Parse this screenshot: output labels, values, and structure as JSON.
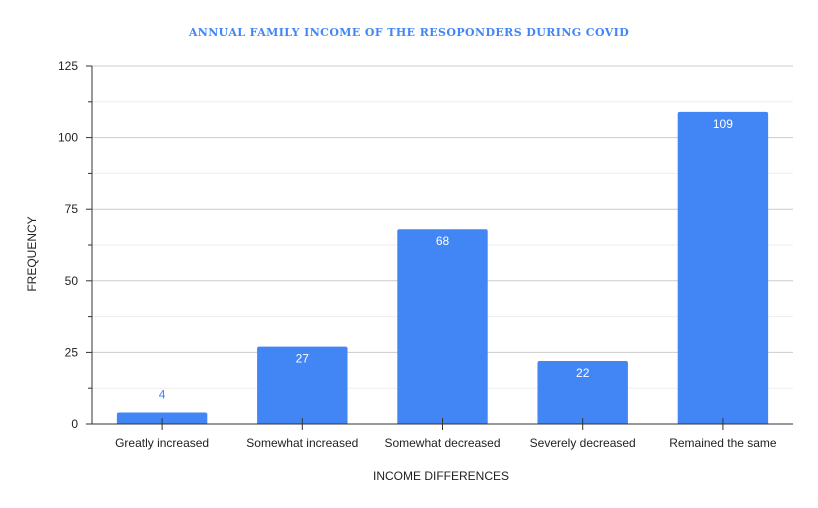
{
  "chart_data": {
    "type": "bar",
    "title": "ANNUAL FAMILY INCOME OF THE RESOPONDERS DURING COVID",
    "xlabel": "INCOME DIFFERENCES",
    "ylabel": "FREQUENCY",
    "categories": [
      "Greatly increased",
      "Somewhat increased",
      "Somewhat decreased",
      "Severely decreased",
      "Remained the same"
    ],
    "values": [
      4,
      27,
      68,
      22,
      109
    ],
    "data_labels": [
      "4",
      "27",
      "68",
      "22",
      "109"
    ],
    "ylim": [
      0,
      125
    ],
    "yticks": [
      0,
      25,
      50,
      75,
      100,
      125
    ],
    "ytick_labels": [
      "0",
      "25",
      "50",
      "75",
      "100",
      "125"
    ],
    "grid": true,
    "legend": "none",
    "colors": {
      "bar": "#4285f4",
      "title": "#4285f4",
      "label_inside": "#ffffff",
      "label_outside": "#4285f4",
      "grid_major": "#cccccc",
      "grid_minor": "#eeeeee",
      "axis": "#333333"
    }
  }
}
